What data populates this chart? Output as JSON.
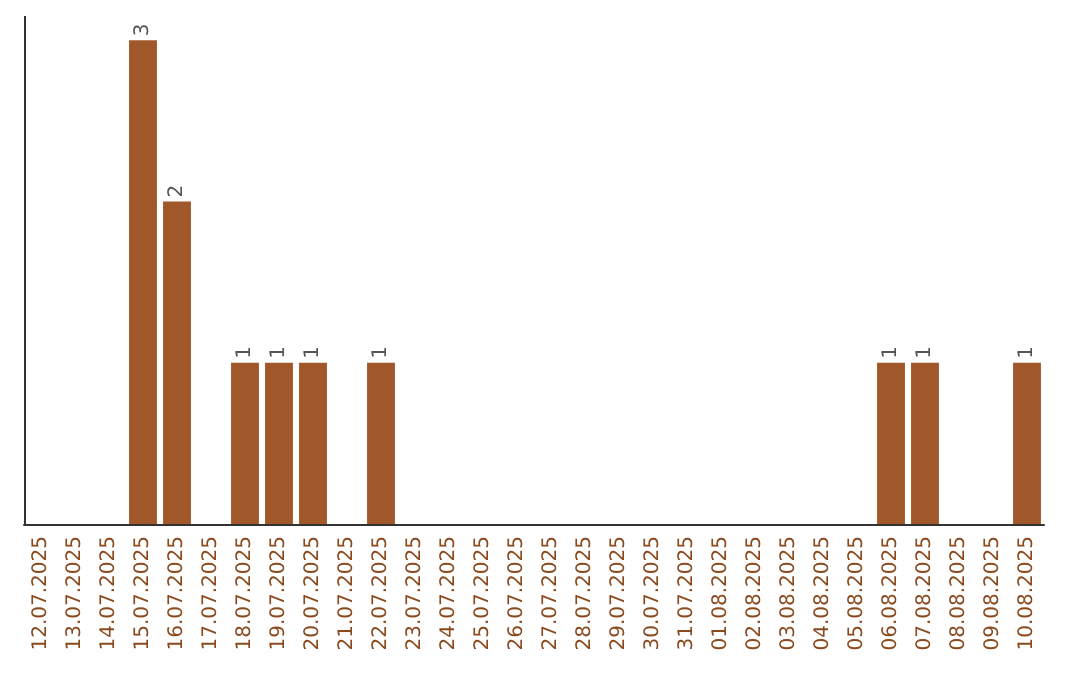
{
  "chart_data": {
    "type": "bar",
    "categories": [
      "12.07.2025",
      "13.07.2025",
      "14.07.2025",
      "15.07.2025",
      "16.07.2025",
      "17.07.2025",
      "18.07.2025",
      "19.07.2025",
      "20.07.2025",
      "21.07.2025",
      "22.07.2025",
      "23.07.2025",
      "24.07.2025",
      "25.07.2025",
      "26.07.2025",
      "27.07.2025",
      "28.07.2025",
      "29.07.2025",
      "30.07.2025",
      "31.07.2025",
      "01.08.2025",
      "02.08.2025",
      "03.08.2025",
      "04.08.2025",
      "05.08.2025",
      "06.08.2025",
      "07.08.2025",
      "08.08.2025",
      "09.08.2025",
      "10.08.2025"
    ],
    "values": [
      null,
      null,
      null,
      3,
      2,
      null,
      1,
      1,
      1,
      null,
      1,
      null,
      null,
      null,
      null,
      null,
      null,
      null,
      null,
      null,
      null,
      null,
      null,
      null,
      null,
      1,
      1,
      null,
      null,
      1
    ],
    "color": "#a0572a",
    "data_labels": true,
    "tick_labels": "x"
  }
}
